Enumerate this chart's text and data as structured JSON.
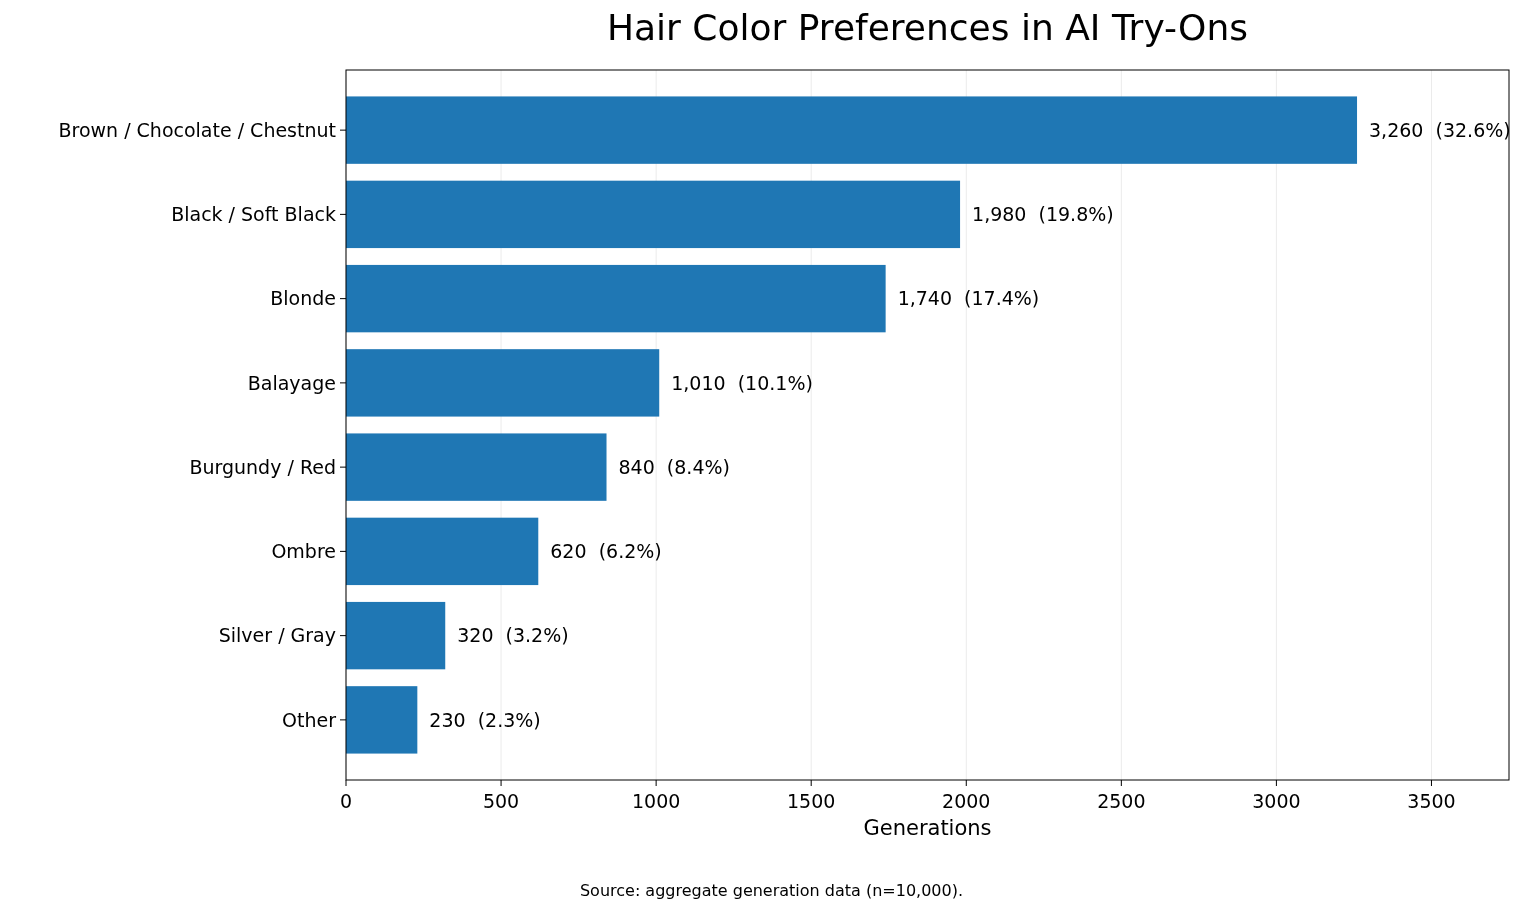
{
  "chart_data": {
    "type": "bar",
    "orientation": "horizontal",
    "title": "Hair Color Preferences in AI Try-Ons",
    "xlabel": "Generations",
    "categories": [
      "Brown / Chocolate / Chestnut",
      "Black / Soft Black",
      "Blonde",
      "Balayage",
      "Burgundy / Red",
      "Ombre",
      "Silver / Gray",
      "Other"
    ],
    "values": [
      3260,
      1980,
      1740,
      1010,
      840,
      620,
      320,
      230
    ],
    "value_labels": [
      "3,260  (32.6%)",
      "1,980  (19.8%)",
      "1,740  (17.4%)",
      "1,010  (10.1%)",
      "840  (8.4%)",
      "620  (6.2%)",
      "320  (3.2%)",
      "230  (2.3%)"
    ],
    "color": "#1f77b4",
    "xlim": [
      0,
      3750
    ],
    "xticks": [
      0,
      500,
      1000,
      1500,
      2000,
      2500,
      3000,
      3500
    ],
    "grid": "x",
    "annotations": [
      "Source: aggregate generation data (n=10,000)."
    ]
  }
}
